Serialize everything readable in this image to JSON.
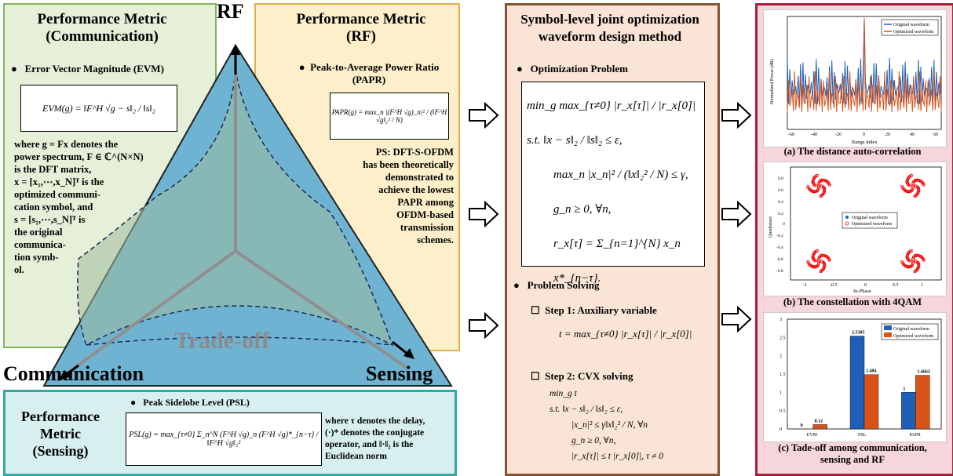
{
  "vertices": {
    "top": "RF",
    "left": "Communication",
    "right": "Sensing",
    "center": "Trade-off"
  },
  "comm": {
    "title1": "Performance Metric",
    "title2": "(Communication)",
    "bullet": "Error Vector Magnitude (EVM)",
    "formula": "EVM(g) = ‖F^H √g − s‖₂ / ‖s‖₂",
    "desc": [
      "where  g = Fx  denotes the",
      "power spectrum, F ∈ ℂ^(N×N)",
      "is the DFT matrix,",
      "x = [x₁,⋯,x_N]ᵀ  is the",
      "optimized communi-",
      "cation symbol, and",
      "s = [s₁,⋯,s_N]ᵀ is",
      "the original",
      "communica-",
      "tion symb-",
      "ol."
    ]
  },
  "rf": {
    "title1": "Performance Metric",
    "title2": "(RF)",
    "bullet1": "Peak-to-Average Power Ratio",
    "bullet2": "(PAPR)",
    "formula": "PAPR(g) = max_n |(F^H √g)_n|² / (‖F^H √g‖₂² / N)",
    "ps": [
      "PS: DFT-S-OFDM",
      "has been theoretically",
      "demonstrated to",
      "achieve the lowest",
      "PAPR among",
      "OFDM-based",
      "transmission",
      "schemes."
    ]
  },
  "sensing": {
    "title": [
      "Performance",
      "Metric",
      "(Sensing)"
    ],
    "bullet": "Peak Sidelobe Level (PSL)",
    "formula": "PSL(g) = max_{τ≠0} Σ_n^N (F^H √g)_n (F^H √g)*_{n−τ} / ‖F^H √g‖₂²",
    "desc": [
      "where τ denotes the delay,",
      "(·)* denotes the conjugate",
      "operator, and ‖·‖₂ is the",
      "Euclidean norm"
    ]
  },
  "method": {
    "title1": "Symbol-level joint optimization",
    "title2": "waveform design method",
    "bullet1": "Optimization Problem",
    "opt": [
      "min_g max_{τ≠0} |r_x[τ]| / |r_x[0]|",
      "s.t.  ‖x − s‖₂ / ‖s‖₂ ≤ ε,",
      "max_n |x_n|² / (‖x‖₂² / N) ≤ γ,",
      "g_n ≥ 0, ∀n,",
      "r_x[τ] = Σ_{n=1}^{N} x_n x*_{n−τ}."
    ],
    "bullet2": "Problem Solving",
    "step1": "Step 1: Auxiliary variable",
    "step1_formula": "t = max_{τ≠0} |r_x[τ]| / |r_x[0]|",
    "step2": "Step 2: CVX solving",
    "step2_formula": [
      "min_g t",
      "s.t.  ‖x − s‖₂ / ‖s‖₂ ≤ ε,",
      "|x_n|² ≤ γ‖x‖₂² / N, ∀n",
      "g_n ≥ 0, ∀n,",
      "|r_x[τ]| ≤ t |r_x[0]|, τ ≠ 0"
    ]
  },
  "results": {
    "a_caption": "(a) The distance auto-correlation",
    "a_xlabel": "Range index",
    "a_ylabel": "Normalized Power (dB)",
    "a_legend": [
      "Original waveform",
      "Optimized waveform"
    ],
    "a_xticks": [
      "-60",
      "-40",
      "-20",
      "0",
      "20",
      "40",
      "60"
    ],
    "b_caption": "(b) The constellation with 4QAM",
    "b_xlabel": "In-Phase",
    "b_ylabel": "Quadrature",
    "b_legend": [
      "Original waveform",
      "Optimized waveform"
    ],
    "b_xticks": [
      "-1",
      "-0.5",
      "0",
      "0.5",
      "1"
    ],
    "b_yticks": [
      "0.8",
      "0.6",
      "0.4",
      "0.2",
      "0",
      "-0.2",
      "-0.4",
      "-0.6",
      "-0.8"
    ],
    "c_caption1": "(c) Tade-off among communication,",
    "c_caption2": "sensing and RF"
  },
  "colors": {
    "original": "#1f5fb8",
    "optimized": "#d95319",
    "triangle": "#6fb3d2"
  },
  "chart_data": {
    "type": "bar",
    "categories": [
      "EVM",
      "PSL",
      "PAPR"
    ],
    "series": [
      {
        "name": "Original waveform",
        "values": [
          0,
          2.5385,
          1
        ],
        "labels": [
          "0",
          "2.5385",
          "1"
        ]
      },
      {
        "name": "Optimized waveform",
        "values": [
          0.12,
          1.484,
          1.4663
        ],
        "labels": [
          "0.12",
          "1.484",
          "1.4663"
        ]
      }
    ],
    "ylim": [
      0,
      3
    ],
    "yticks": [
      "0",
      "0.5",
      "1",
      "1.5",
      "2",
      "2.5",
      "3"
    ],
    "legend": "top-right",
    "grid": false
  }
}
